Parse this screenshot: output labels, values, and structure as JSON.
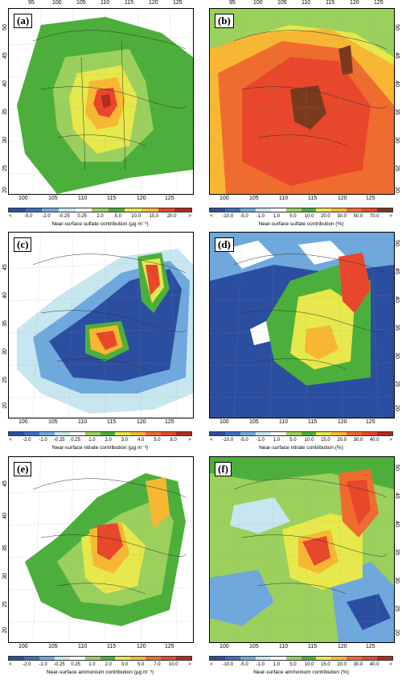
{
  "panels": [
    {
      "id": "a",
      "label": "(a)",
      "title": "Near-surface sulfate contribution (µg m⁻³)",
      "top_ticks": [
        "95",
        "100",
        "105",
        "110",
        "115",
        "120",
        "125"
      ],
      "left_ticks": [
        "50",
        "45",
        "40",
        "35",
        "30",
        "25",
        "20"
      ],
      "bottom_ticks": [
        "100",
        "105",
        "110",
        "115",
        "120",
        "125"
      ],
      "colorbar_labels": [
        "<",
        "-5.0",
        "-2.0",
        "-0.25",
        "0.25",
        "2.0",
        "5.0",
        "10.0",
        "15.0",
        "20.0",
        ">"
      ],
      "colorbar_colors": [
        "#2b4ea0",
        "#3b6fc2",
        "#6fa8dc",
        "#c7e6f0",
        "#ffffff",
        "#9bd05d",
        "#4caf3b",
        "#e6e84c",
        "#f7b733",
        "#e8472b",
        "#b12a1f"
      ],
      "field": "sulfate_absolute"
    },
    {
      "id": "b",
      "label": "(b)",
      "title": "Near-surface sulfate contribution (%)",
      "top_ticks": [
        "95",
        "100",
        "105",
        "110",
        "115",
        "120",
        "125"
      ],
      "right_ticks": [
        "50",
        "45",
        "40",
        "35",
        "30",
        "25",
        "20"
      ],
      "bottom_ticks": [
        "100",
        "105",
        "110",
        "115",
        "120",
        "125"
      ],
      "colorbar_labels": [
        "<",
        "-10.0",
        "-5.0",
        "-1.0",
        "1.0",
        "5.0",
        "10.0",
        "20.0",
        "30.0",
        "50.0",
        "70.0",
        ">"
      ],
      "colorbar_colors": [
        "#2b4ea0",
        "#3b6fc2",
        "#6fa8dc",
        "#c7e6f0",
        "#ffffff",
        "#9bd05d",
        "#4caf3b",
        "#e6e84c",
        "#f7b733",
        "#ef6c2e",
        "#e8472b",
        "#7a3a1e"
      ],
      "field": "sulfate_percent"
    },
    {
      "id": "c",
      "label": "(c)",
      "title": "Near-surface nitrate contribution (µg m⁻³)",
      "left_ticks": [
        "45",
        "40",
        "35",
        "30",
        "25",
        "20"
      ],
      "bottom_ticks": [
        "100",
        "105",
        "110",
        "115",
        "120",
        "125"
      ],
      "colorbar_labels": [
        "<",
        "-2.0",
        "-1.0",
        "-0.25",
        "0.25",
        "1.0",
        "2.0",
        "3.0",
        "4.0",
        "5.0",
        "8.0",
        ">"
      ],
      "colorbar_colors": [
        "#2b4ea0",
        "#3b6fc2",
        "#6fa8dc",
        "#c7e6f0",
        "#ffffff",
        "#9bd05d",
        "#4caf3b",
        "#e6e84c",
        "#f7b733",
        "#ef6c2e",
        "#e8472b",
        "#b12a1f"
      ],
      "field": "nitrate_absolute"
    },
    {
      "id": "d",
      "label": "(d)",
      "title": "Near-surface nitrate contribution (%)",
      "right_ticks": [
        "50",
        "45",
        "40",
        "35",
        "30",
        "25",
        "20"
      ],
      "bottom_ticks": [
        "100",
        "105",
        "110",
        "115",
        "120",
        "125"
      ],
      "colorbar_labels": [
        "<",
        "-10.0",
        "-5.0",
        "-1.0",
        "1.0",
        "5.0",
        "10.0",
        "15.0",
        "20.0",
        "30.0",
        "40.0",
        ">"
      ],
      "colorbar_colors": [
        "#2b4ea0",
        "#3b6fc2",
        "#6fa8dc",
        "#c7e6f0",
        "#ffffff",
        "#9bd05d",
        "#4caf3b",
        "#e6e84c",
        "#f7b733",
        "#ef6c2e",
        "#e8472b",
        "#b12a1f"
      ],
      "field": "nitrate_percent"
    },
    {
      "id": "e",
      "label": "(e)",
      "title": "Near-surface ammonium contribution (µg m⁻³)",
      "left_ticks": [
        "45",
        "40",
        "35",
        "30",
        "25",
        "20"
      ],
      "bottom_ticks": [
        "100",
        "105",
        "110",
        "115",
        "120",
        "125"
      ],
      "colorbar_labels": [
        "<",
        "-2.0",
        "-1.0",
        "-0.25",
        "0.25",
        "1.0",
        "2.0",
        "3.0",
        "5.0",
        "7.0",
        "10.0",
        ">"
      ],
      "colorbar_colors": [
        "#2b4ea0",
        "#3b6fc2",
        "#6fa8dc",
        "#c7e6f0",
        "#ffffff",
        "#9bd05d",
        "#4caf3b",
        "#e6e84c",
        "#f7b733",
        "#ef6c2e",
        "#e8472b",
        "#b12a1f"
      ],
      "field": "ammonium_absolute"
    },
    {
      "id": "f",
      "label": "(f)",
      "title": "Near-surface ammonium contribution (%)",
      "right_ticks": [
        "50",
        "45",
        "40",
        "35",
        "30",
        "25",
        "20"
      ],
      "bottom_ticks": [
        "100",
        "105",
        "110",
        "115",
        "120",
        "125"
      ],
      "colorbar_labels": [
        "<",
        "-10.0",
        "-5.0",
        "-1.0",
        "1.0",
        "5.0",
        "10.0",
        "15.0",
        "20.0",
        "30.0",
        "40.0",
        ">"
      ],
      "colorbar_colors": [
        "#2b4ea0",
        "#3b6fc2",
        "#6fa8dc",
        "#c7e6f0",
        "#ffffff",
        "#9bd05d",
        "#4caf3b",
        "#e6e84c",
        "#f7b733",
        "#ef6c2e",
        "#e8472b",
        "#b12a1f"
      ],
      "field": "ammonium_percent"
    }
  ]
}
